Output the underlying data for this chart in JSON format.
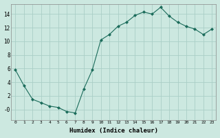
{
  "x": [
    0,
    1,
    2,
    3,
    4,
    5,
    6,
    7,
    8,
    9,
    10,
    11,
    12,
    13,
    14,
    15,
    16,
    17,
    18,
    19,
    20,
    21,
    22,
    23
  ],
  "y": [
    5.8,
    3.5,
    1.5,
    1.0,
    0.5,
    0.3,
    -0.3,
    -0.5,
    3.0,
    5.8,
    10.2,
    11.0,
    12.2,
    12.8,
    13.8,
    14.3,
    14.0,
    15.0,
    13.7,
    12.8,
    12.2,
    11.8,
    11.0,
    11.8
  ],
  "title": "",
  "xlabel": "Humidex (Indice chaleur)",
  "ylabel": "",
  "bg_color": "#cce8e0",
  "grid_color": "#aacec6",
  "line_color": "#1a6b5a",
  "marker_color": "#1a6b5a",
  "xlim": [
    -0.5,
    23.5
  ],
  "ylim": [
    -1.5,
    15.5
  ],
  "ytick_values": [
    0,
    2,
    4,
    6,
    8,
    10,
    12,
    14
  ],
  "ytick_labels": [
    "-0",
    "2",
    "4",
    "6",
    "8",
    "10",
    "12",
    "14"
  ],
  "xticks": [
    0,
    1,
    2,
    3,
    4,
    5,
    6,
    7,
    8,
    9,
    10,
    11,
    12,
    13,
    14,
    15,
    16,
    17,
    18,
    19,
    20,
    21,
    22,
    23
  ]
}
